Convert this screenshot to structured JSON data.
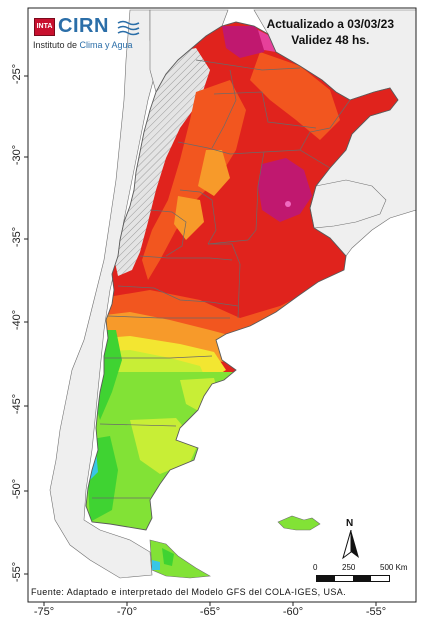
{
  "logo": {
    "badge": "INTA",
    "name": "CIRN",
    "subtitle_prefix": "Instituto de ",
    "subtitle_highlight": "Clima y Agua"
  },
  "header": {
    "updated": "Actualizado a 03/03/23",
    "validity": "Validez 48 hs."
  },
  "source": "Fuente: Adaptado e interpretado del Modelo GFS del COLA-IGES, USA.",
  "axes": {
    "lat_ticks": [
      "-25°",
      "-30°",
      "-35°",
      "-40°",
      "-45°",
      "-50°",
      "-55°"
    ],
    "lon_ticks": [
      "-75°",
      "-70°",
      "-65°",
      "-60°",
      "-55°"
    ]
  },
  "scale_bar": {
    "labels": [
      "0",
      "250",
      "500 Km"
    ]
  },
  "north_arrow": {
    "label": "N"
  },
  "colors": {
    "ocean": "#ffffff",
    "neighbors": "#efefef",
    "border": "#707070",
    "hatched": "#d8d8d8",
    "magenta": "#c0186f",
    "pink": "#e6409a",
    "red": "#e0231d",
    "orange_red": "#f2561f",
    "orange": "#f79a2a",
    "yellow": "#f3e631",
    "yellow_green": "#c8ee36",
    "green": "#82e236",
    "bright_green": "#3fd332",
    "cyan": "#39c6e6",
    "blue": "#2466d8"
  }
}
